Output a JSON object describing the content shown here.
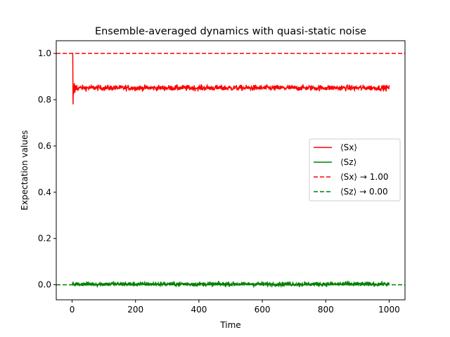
{
  "chart_data": {
    "type": "line",
    "title": "Ensemble-averaged dynamics with quasi-static noise",
    "xlabel": "Time",
    "ylabel": "Expectation values",
    "xlim": [
      -50,
      1050
    ],
    "ylim": [
      -0.065,
      1.055
    ],
    "xticks": [
      0,
      200,
      400,
      600,
      800,
      1000
    ],
    "xtick_labels": [
      "0",
      "200",
      "400",
      "600",
      "800",
      "1000"
    ],
    "yticks": [
      0.0,
      0.2,
      0.4,
      0.6,
      0.8,
      1.0
    ],
    "ytick_labels": [
      "0.0",
      "0.2",
      "0.4",
      "0.6",
      "0.8",
      "1.0"
    ],
    "grid": false,
    "legend_position": "center-right",
    "series": [
      {
        "name": "⟨Sx⟩",
        "color": "#ff0000",
        "style": "solid",
        "x_range": [
          0,
          1000
        ],
        "initial_value": 1.0,
        "transient_min": 0.78,
        "steady_mean": 0.851,
        "noise_amplitude": 0.012
      },
      {
        "name": "⟨Sz⟩",
        "color": "#008000",
        "style": "solid",
        "x_range": [
          0,
          1000
        ],
        "initial_value": 0.0,
        "steady_mean": 0.003,
        "noise_amplitude": 0.009
      },
      {
        "name": "⟨Sx⟩ → 1.00",
        "color": "#ff0000",
        "style": "dashed",
        "y": 1.0
      },
      {
        "name": "⟨Sz⟩ → 0.00",
        "color": "#008000",
        "style": "dashed",
        "y": 0.0
      }
    ]
  }
}
